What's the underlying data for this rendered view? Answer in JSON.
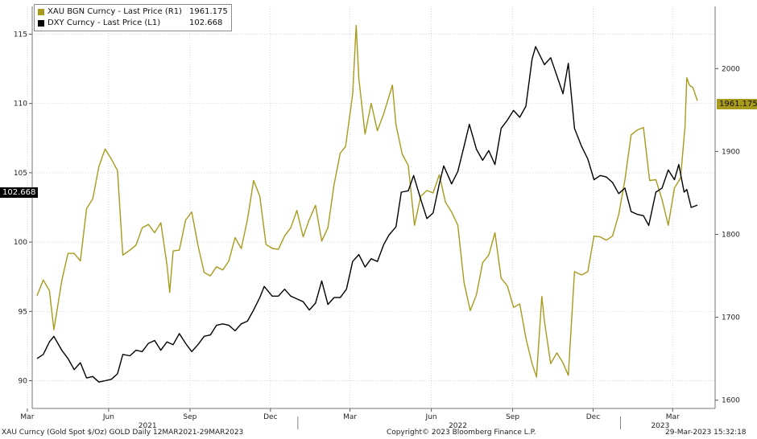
{
  "chart_data": {
    "type": "line",
    "legend": {
      "placement": "top-left",
      "entries": [
        {
          "name": "XAU BGN Curncy - Last Price (R1)",
          "value": "1961.175",
          "color": "#a89a1c"
        },
        {
          "name": "DXY Curncy - Last Price (L1)",
          "value": "102.668",
          "color": "#000000"
        }
      ]
    },
    "left_axis": {
      "ticks": [
        "90",
        "95",
        "100",
        "105",
        "110",
        "115"
      ],
      "range": [
        88,
        117
      ],
      "last_value_tag": "102.668"
    },
    "right_axis": {
      "ticks": [
        "1600",
        "1700",
        "1800",
        "1900",
        "2000"
      ],
      "range": [
        1590,
        2075
      ],
      "last_value_tag": "1961.175"
    },
    "x_axis": {
      "range": [
        "2021-03-12",
        "2023-03-29"
      ],
      "month_ticks": [
        {
          "label": "Mar",
          "date": "2021-03-01"
        },
        {
          "label": "Jun",
          "date": "2021-06-01"
        },
        {
          "label": "Sep",
          "date": "2021-09-01"
        },
        {
          "label": "Dec",
          "date": "2021-12-01"
        },
        {
          "label": "Mar",
          "date": "2022-03-01"
        },
        {
          "label": "Jun",
          "date": "2022-06-01"
        },
        {
          "label": "Sep",
          "date": "2022-09-01"
        },
        {
          "label": "Dec",
          "date": "2022-12-01"
        },
        {
          "label": "Mar",
          "date": "2023-03-01"
        }
      ],
      "year_labels": [
        {
          "label": "2021",
          "date": "2021-07-15"
        },
        {
          "label": "2022",
          "date": "2022-07-01"
        },
        {
          "label": "2023",
          "date": "2023-02-15"
        }
      ],
      "year_separators": [
        "2022-01-01",
        "2023-01-01"
      ]
    },
    "grid": true,
    "series": [
      {
        "name": "XAU BGN Curncy - Last Price (R1)",
        "axis": "right",
        "color": "#a89a1c",
        "points": [
          [
            "2021-03-12",
            1726
          ],
          [
            "2021-03-19",
            1745
          ],
          [
            "2021-03-26",
            1732
          ],
          [
            "2021-03-31",
            1685
          ],
          [
            "2021-04-09",
            1744
          ],
          [
            "2021-04-16",
            1777
          ],
          [
            "2021-04-23",
            1777
          ],
          [
            "2021-04-30",
            1768
          ],
          [
            "2021-05-07",
            1831
          ],
          [
            "2021-05-14",
            1843
          ],
          [
            "2021-05-21",
            1882
          ],
          [
            "2021-05-28",
            1903
          ],
          [
            "2021-06-04",
            1891
          ],
          [
            "2021-06-11",
            1877
          ],
          [
            "2021-06-17",
            1775
          ],
          [
            "2021-06-25",
            1781
          ],
          [
            "2021-07-02",
            1787
          ],
          [
            "2021-07-09",
            1808
          ],
          [
            "2021-07-16",
            1812
          ],
          [
            "2021-07-23",
            1802
          ],
          [
            "2021-07-30",
            1814
          ],
          [
            "2021-08-06",
            1763
          ],
          [
            "2021-08-09",
            1730
          ],
          [
            "2021-08-13",
            1780
          ],
          [
            "2021-08-20",
            1781
          ],
          [
            "2021-08-27",
            1817
          ],
          [
            "2021-09-03",
            1827
          ],
          [
            "2021-09-10",
            1787
          ],
          [
            "2021-09-17",
            1754
          ],
          [
            "2021-09-24",
            1750
          ],
          [
            "2021-10-01",
            1761
          ],
          [
            "2021-10-08",
            1757
          ],
          [
            "2021-10-15",
            1768
          ],
          [
            "2021-10-22",
            1796
          ],
          [
            "2021-10-29",
            1783
          ],
          [
            "2021-11-05",
            1818
          ],
          [
            "2021-11-12",
            1865
          ],
          [
            "2021-11-19",
            1846
          ],
          [
            "2021-11-26",
            1788
          ],
          [
            "2021-12-03",
            1783
          ],
          [
            "2021-12-10",
            1782
          ],
          [
            "2021-12-17",
            1798
          ],
          [
            "2021-12-24",
            1808
          ],
          [
            "2021-12-31",
            1829
          ],
          [
            "2022-01-07",
            1797
          ],
          [
            "2022-01-14",
            1818
          ],
          [
            "2022-01-21",
            1835
          ],
          [
            "2022-01-28",
            1792
          ],
          [
            "2022-02-04",
            1808
          ],
          [
            "2022-02-11",
            1860
          ],
          [
            "2022-02-18",
            1898
          ],
          [
            "2022-02-24",
            1906
          ],
          [
            "2022-03-04",
            1969
          ],
          [
            "2022-03-08",
            2052
          ],
          [
            "2022-03-11",
            1988
          ],
          [
            "2022-03-18",
            1921
          ],
          [
            "2022-03-25",
            1958
          ],
          [
            "2022-04-01",
            1925
          ],
          [
            "2022-04-08",
            1945
          ],
          [
            "2022-04-18",
            1980
          ],
          [
            "2022-04-22",
            1932
          ],
          [
            "2022-04-29",
            1897
          ],
          [
            "2022-05-06",
            1883
          ],
          [
            "2022-05-13",
            1811
          ],
          [
            "2022-05-20",
            1846
          ],
          [
            "2022-05-27",
            1853
          ],
          [
            "2022-06-03",
            1850
          ],
          [
            "2022-06-10",
            1872
          ],
          [
            "2022-06-17",
            1839
          ],
          [
            "2022-06-24",
            1827
          ],
          [
            "2022-07-01",
            1811
          ],
          [
            "2022-07-08",
            1742
          ],
          [
            "2022-07-15",
            1708
          ],
          [
            "2022-07-22",
            1727
          ],
          [
            "2022-07-29",
            1766
          ],
          [
            "2022-08-05",
            1775
          ],
          [
            "2022-08-12",
            1802
          ],
          [
            "2022-08-19",
            1747
          ],
          [
            "2022-08-26",
            1738
          ],
          [
            "2022-09-02",
            1712
          ],
          [
            "2022-09-09",
            1716
          ],
          [
            "2022-09-16",
            1675
          ],
          [
            "2022-09-23",
            1644
          ],
          [
            "2022-09-28",
            1628
          ],
          [
            "2022-10-04",
            1725
          ],
          [
            "2022-10-07",
            1695
          ],
          [
            "2022-10-14",
            1644
          ],
          [
            "2022-10-21",
            1657
          ],
          [
            "2022-10-28",
            1645
          ],
          [
            "2022-11-03",
            1630
          ],
          [
            "2022-11-10",
            1755
          ],
          [
            "2022-11-18",
            1751
          ],
          [
            "2022-11-25",
            1755
          ],
          [
            "2022-12-02",
            1798
          ],
          [
            "2022-12-09",
            1797
          ],
          [
            "2022-12-16",
            1793
          ],
          [
            "2022-12-23",
            1798
          ],
          [
            "2022-12-30",
            1824
          ],
          [
            "2023-01-06",
            1866
          ],
          [
            "2023-01-13",
            1920
          ],
          [
            "2023-01-20",
            1926
          ],
          [
            "2023-01-27",
            1929
          ],
          [
            "2023-02-03",
            1865
          ],
          [
            "2023-02-10",
            1866
          ],
          [
            "2023-02-17",
            1842
          ],
          [
            "2023-02-24",
            1811
          ],
          [
            "2023-03-03",
            1856
          ],
          [
            "2023-03-10",
            1868
          ],
          [
            "2023-03-15",
            1930
          ],
          [
            "2023-03-17",
            1989
          ],
          [
            "2023-03-20",
            1980
          ],
          [
            "2023-03-24",
            1977
          ],
          [
            "2023-03-29",
            1961.175
          ]
        ]
      },
      {
        "name": "DXY Curncy - Last Price (L1)",
        "axis": "left",
        "color": "#000000",
        "points": [
          [
            "2021-03-12",
            91.6
          ],
          [
            "2021-03-19",
            91.9
          ],
          [
            "2021-03-26",
            92.8
          ],
          [
            "2021-03-31",
            93.2
          ],
          [
            "2021-04-09",
            92.2
          ],
          [
            "2021-04-16",
            91.6
          ],
          [
            "2021-04-23",
            90.8
          ],
          [
            "2021-04-30",
            91.3
          ],
          [
            "2021-05-07",
            90.2
          ],
          [
            "2021-05-14",
            90.3
          ],
          [
            "2021-05-21",
            89.9
          ],
          [
            "2021-05-28",
            90.0
          ],
          [
            "2021-06-04",
            90.1
          ],
          [
            "2021-06-11",
            90.5
          ],
          [
            "2021-06-17",
            91.9
          ],
          [
            "2021-06-25",
            91.8
          ],
          [
            "2021-07-02",
            92.2
          ],
          [
            "2021-07-09",
            92.1
          ],
          [
            "2021-07-16",
            92.7
          ],
          [
            "2021-07-23",
            92.9
          ],
          [
            "2021-07-30",
            92.2
          ],
          [
            "2021-08-06",
            92.8
          ],
          [
            "2021-08-13",
            92.6
          ],
          [
            "2021-08-20",
            93.4
          ],
          [
            "2021-08-27",
            92.7
          ],
          [
            "2021-09-03",
            92.1
          ],
          [
            "2021-09-10",
            92.6
          ],
          [
            "2021-09-17",
            93.2
          ],
          [
            "2021-09-24",
            93.3
          ],
          [
            "2021-10-01",
            94.0
          ],
          [
            "2021-10-08",
            94.1
          ],
          [
            "2021-10-15",
            94.0
          ],
          [
            "2021-10-22",
            93.6
          ],
          [
            "2021-10-29",
            94.1
          ],
          [
            "2021-11-05",
            94.3
          ],
          [
            "2021-11-12",
            95.1
          ],
          [
            "2021-11-19",
            96.0
          ],
          [
            "2021-11-24",
            96.8
          ],
          [
            "2021-12-03",
            96.1
          ],
          [
            "2021-12-10",
            96.1
          ],
          [
            "2021-12-17",
            96.6
          ],
          [
            "2021-12-24",
            96.1
          ],
          [
            "2021-12-31",
            95.9
          ],
          [
            "2022-01-07",
            95.7
          ],
          [
            "2022-01-14",
            95.1
          ],
          [
            "2022-01-21",
            95.6
          ],
          [
            "2022-01-28",
            97.2
          ],
          [
            "2022-02-04",
            95.5
          ],
          [
            "2022-02-11",
            96.0
          ],
          [
            "2022-02-18",
            96.0
          ],
          [
            "2022-02-25",
            96.6
          ],
          [
            "2022-03-04",
            98.6
          ],
          [
            "2022-03-11",
            99.1
          ],
          [
            "2022-03-18",
            98.2
          ],
          [
            "2022-03-25",
            98.8
          ],
          [
            "2022-04-01",
            98.6
          ],
          [
            "2022-04-08",
            99.8
          ],
          [
            "2022-04-14",
            100.5
          ],
          [
            "2022-04-22",
            101.1
          ],
          [
            "2022-04-28",
            103.6
          ],
          [
            "2022-05-06",
            103.7
          ],
          [
            "2022-05-12",
            104.8
          ],
          [
            "2022-05-20",
            103.1
          ],
          [
            "2022-05-27",
            101.7
          ],
          [
            "2022-06-03",
            102.1
          ],
          [
            "2022-06-10",
            104.2
          ],
          [
            "2022-06-15",
            105.5
          ],
          [
            "2022-06-24",
            104.2
          ],
          [
            "2022-07-01",
            105.1
          ],
          [
            "2022-07-08",
            106.9
          ],
          [
            "2022-07-14",
            108.5
          ],
          [
            "2022-07-22",
            106.7
          ],
          [
            "2022-07-29",
            105.9
          ],
          [
            "2022-08-05",
            106.6
          ],
          [
            "2022-08-12",
            105.6
          ],
          [
            "2022-08-19",
            108.2
          ],
          [
            "2022-08-26",
            108.8
          ],
          [
            "2022-09-02",
            109.5
          ],
          [
            "2022-09-09",
            109.0
          ],
          [
            "2022-09-16",
            109.8
          ],
          [
            "2022-09-23",
            113.2
          ],
          [
            "2022-09-27",
            114.1
          ],
          [
            "2022-10-07",
            112.8
          ],
          [
            "2022-10-14",
            113.3
          ],
          [
            "2022-10-21",
            112.0
          ],
          [
            "2022-10-28",
            110.7
          ],
          [
            "2022-11-03",
            112.9
          ],
          [
            "2022-11-10",
            108.2
          ],
          [
            "2022-11-18",
            106.9
          ],
          [
            "2022-11-25",
            106.0
          ],
          [
            "2022-12-02",
            104.5
          ],
          [
            "2022-12-09",
            104.8
          ],
          [
            "2022-12-16",
            104.7
          ],
          [
            "2022-12-23",
            104.3
          ],
          [
            "2022-12-30",
            103.5
          ],
          [
            "2023-01-06",
            103.9
          ],
          [
            "2023-01-13",
            102.2
          ],
          [
            "2023-01-20",
            102.0
          ],
          [
            "2023-01-27",
            101.9
          ],
          [
            "2023-02-02",
            101.2
          ],
          [
            "2023-02-10",
            103.6
          ],
          [
            "2023-02-17",
            103.9
          ],
          [
            "2023-02-24",
            105.2
          ],
          [
            "2023-03-03",
            104.5
          ],
          [
            "2023-03-08",
            105.6
          ],
          [
            "2023-03-14",
            103.6
          ],
          [
            "2023-03-17",
            103.8
          ],
          [
            "2023-03-22",
            102.5
          ],
          [
            "2023-03-29",
            102.668
          ]
        ]
      }
    ]
  },
  "footer": {
    "left": "XAU Curncy (Gold Spot  $/Oz) GOLD  Daily 12MAR2021-29MAR2023",
    "center": "Copyright© 2023 Bloomberg Finance L.P.",
    "right": "29-Mar-2023 15:32:18"
  }
}
